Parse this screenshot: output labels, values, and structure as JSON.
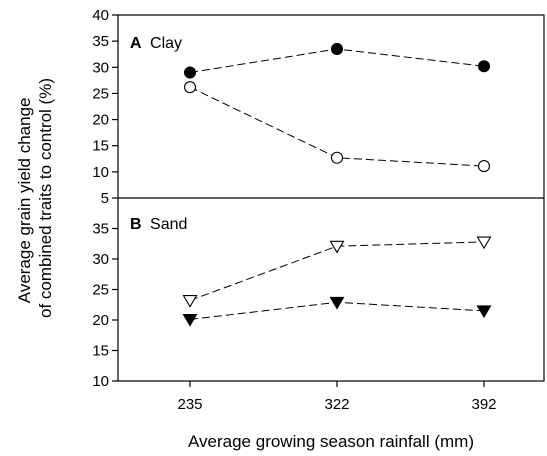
{
  "chart_data": {
    "type": "line",
    "xlabel": "Average growing season rainfall (mm)",
    "ylabel_line1": "Average grain yield change",
    "ylabel_line2": "of combined traits to control (%)",
    "x_categories": [
      235,
      322,
      392
    ],
    "panels": [
      {
        "letter": "A",
        "title": "Clay",
        "ylim": [
          5,
          40
        ],
        "yticks": [
          5,
          10,
          15,
          20,
          25,
          30,
          35,
          40
        ],
        "series": [
          {
            "marker": "filled-circle",
            "values": [
              29,
              33.5,
              30.2
            ]
          },
          {
            "marker": "open-circle",
            "values": [
              26.2,
              12.7,
              11.1
            ]
          }
        ]
      },
      {
        "letter": "B",
        "title": "Sand",
        "ylim": [
          10,
          40
        ],
        "yticks": [
          10,
          15,
          20,
          25,
          30,
          35
        ],
        "series": [
          {
            "marker": "open-triangle-down",
            "values": [
              23.2,
              32.1,
              32.8
            ]
          },
          {
            "marker": "filled-triangle-down",
            "values": [
              20.1,
              22.9,
              21.5
            ]
          }
        ]
      }
    ]
  }
}
